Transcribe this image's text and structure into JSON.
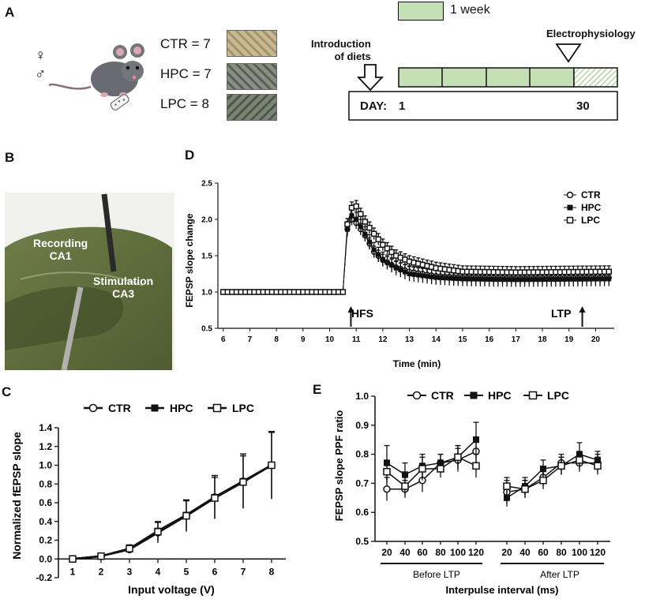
{
  "panels": {
    "a": "A",
    "b": "B",
    "c": "C",
    "d": "D",
    "e": "E"
  },
  "panelA": {
    "sex_female": "♀",
    "sex_male": "♂",
    "groups": [
      {
        "label": "CTR = 7",
        "food_color": "#b9a982"
      },
      {
        "label": "HPC = 7",
        "food_color": "#7c8173"
      },
      {
        "label": "LPC =  8",
        "food_color": "#6f7a6a"
      }
    ],
    "legend_week": "1 week",
    "introduction": "Introduction\nof diets",
    "electrophysiology": "Electrophysiology",
    "day_label": "DAY:",
    "day_start": "1",
    "day_end": "30",
    "week_color": "#c5e0b4"
  },
  "panelB": {
    "recording": "Recording\nCA1",
    "stimulation": "Stimulation\nCA3"
  },
  "colors": {
    "ink": "#111111",
    "slice": "#5e6b3c",
    "bg": "#ffffff"
  },
  "chart_data": [
    {
      "id": "D",
      "type": "scatter",
      "title": "",
      "xlabel": "Time (min)",
      "ylabel": "FEPSP slope change",
      "xlim": [
        5.8,
        20.7
      ],
      "ylim": [
        0.5,
        2.5
      ],
      "xticks": [
        6,
        7,
        8,
        9,
        10,
        11,
        12,
        13,
        14,
        15,
        16,
        17,
        18,
        19,
        20
      ],
      "yticks": [
        0.5,
        1.0,
        1.5,
        2.0,
        2.5
      ],
      "ytick_labels": [
        "0.5",
        "1.0",
        "1.5",
        "2.0",
        "2.5"
      ],
      "annotations": [
        {
          "text": "HFS",
          "x": 10.8
        },
        {
          "text": "LTP",
          "x": 19.5
        }
      ],
      "legend": [
        "CTR",
        "HPC",
        "LPC"
      ],
      "series": [
        {
          "name": "CTR",
          "marker": "circle-open",
          "keys": [
            [
              6,
              1.0
            ],
            [
              10.5,
              1.0
            ],
            [
              10.67,
              1.88
            ],
            [
              10.83,
              2.0
            ],
            [
              11.0,
              1.95
            ],
            [
              11.33,
              1.78
            ],
            [
              11.67,
              1.55
            ],
            [
              12.0,
              1.44
            ],
            [
              12.5,
              1.34
            ],
            [
              13.0,
              1.28
            ],
            [
              14.0,
              1.22
            ],
            [
              15.0,
              1.2
            ],
            [
              17.0,
              1.19
            ],
            [
              20.5,
              1.2
            ]
          ],
          "err": 0.08
        },
        {
          "name": "HPC",
          "marker": "square-filled",
          "keys": [
            [
              6,
              1.0
            ],
            [
              10.5,
              1.0
            ],
            [
              10.67,
              1.88
            ],
            [
              10.83,
              2.05
            ],
            [
              11.0,
              2.0
            ],
            [
              11.33,
              1.8
            ],
            [
              11.67,
              1.58
            ],
            [
              12.0,
              1.45
            ],
            [
              12.5,
              1.33
            ],
            [
              13.0,
              1.25
            ],
            [
              14.0,
              1.2
            ],
            [
              15.0,
              1.18
            ],
            [
              17.0,
              1.17
            ],
            [
              20.5,
              1.18
            ]
          ],
          "err": 0.1
        },
        {
          "name": "LPC",
          "marker": "square-open",
          "keys": [
            [
              6,
              1.0
            ],
            [
              10.5,
              1.0
            ],
            [
              10.67,
              1.95
            ],
            [
              10.83,
              2.16
            ],
            [
              11.0,
              2.18
            ],
            [
              11.33,
              1.97
            ],
            [
              11.67,
              1.8
            ],
            [
              12.0,
              1.65
            ],
            [
              12.5,
              1.5
            ],
            [
              13.0,
              1.42
            ],
            [
              14.0,
              1.33
            ],
            [
              15.0,
              1.28
            ],
            [
              17.0,
              1.27
            ],
            [
              20.5,
              1.28
            ]
          ],
          "err": 0.08
        }
      ]
    },
    {
      "id": "C",
      "type": "line",
      "xlabel": "Input voltage (V)",
      "ylabel": "Normalized fEPSP slope",
      "xlim": [
        0.5,
        8.5
      ],
      "ylim": [
        -0.2,
        1.4
      ],
      "xticks": [
        1,
        2,
        3,
        4,
        5,
        6,
        7,
        8
      ],
      "yticks": [
        -0.2,
        0.0,
        0.2,
        0.4,
        0.6,
        0.8,
        1.0,
        1.2,
        1.4
      ],
      "ytick_labels": [
        "-0.2",
        "0.0",
        "0.2",
        "0.4",
        "0.6",
        "0.8",
        "1.0",
        "1.2",
        "1.4"
      ],
      "legend": [
        "CTR",
        "HPC",
        "LPC"
      ],
      "series": [
        {
          "name": "CTR",
          "marker": "circle-open",
          "values": [
            0.0,
            0.03,
            0.1,
            0.28,
            0.46,
            0.66,
            0.83,
            1.0
          ],
          "err": [
            0.01,
            0.02,
            0.04,
            0.11,
            0.17,
            0.23,
            0.29,
            0.36
          ]
        },
        {
          "name": "HPC",
          "marker": "square-filled",
          "values": [
            0.0,
            0.03,
            0.11,
            0.3,
            0.47,
            0.66,
            0.83,
            1.0
          ],
          "err": [
            0.01,
            0.02,
            0.04,
            0.1,
            0.16,
            0.23,
            0.29,
            0.36
          ]
        },
        {
          "name": "LPC",
          "marker": "square-open",
          "values": [
            0.0,
            0.03,
            0.11,
            0.29,
            0.46,
            0.65,
            0.82,
            1.0
          ],
          "err": [
            0.01,
            0.02,
            0.04,
            0.1,
            0.16,
            0.22,
            0.28,
            0.35
          ]
        }
      ]
    },
    {
      "id": "E",
      "type": "line",
      "xlabel": "Interpulse interval (ms)",
      "ylabel": "FEPSP slope PPF ratio",
      "ylim": [
        0.5,
        1.0
      ],
      "yticks": [
        0.5,
        0.6,
        0.7,
        0.8,
        0.9,
        1.0
      ],
      "ytick_labels": [
        "0.5",
        "0.6",
        "0.7",
        "0.8",
        "0.9",
        "1.0"
      ],
      "categories": [
        "20",
        "40",
        "60",
        "80",
        "100",
        "120",
        "20",
        "40",
        "60",
        "80",
        "100",
        "120"
      ],
      "groups": [
        {
          "label": "Before LTP",
          "from": 0,
          "to": 5
        },
        {
          "label": "After LTP",
          "from": 6,
          "to": 11
        }
      ],
      "legend": [
        "CTR",
        "HPC",
        "LPC"
      ],
      "series": [
        {
          "name": "CTR",
          "marker": "circle-open",
          "values": [
            0.68,
            0.68,
            0.71,
            0.77,
            0.78,
            0.81,
            0.67,
            0.68,
            0.72,
            0.77,
            0.77,
            0.77
          ],
          "err": [
            0.04,
            0.03,
            0.04,
            0.03,
            0.04,
            0.05,
            0.04,
            0.03,
            0.03,
            0.03,
            0.03,
            0.03
          ]
        },
        {
          "name": "HPC",
          "marker": "square-filled",
          "values": [
            0.77,
            0.73,
            0.76,
            0.77,
            0.79,
            0.85,
            0.65,
            0.69,
            0.75,
            0.76,
            0.8,
            0.78
          ],
          "err": [
            0.06,
            0.04,
            0.04,
            0.03,
            0.04,
            0.06,
            0.03,
            0.03,
            0.03,
            0.03,
            0.04,
            0.03
          ]
        },
        {
          "name": "LPC",
          "marker": "square-open",
          "values": [
            0.74,
            0.69,
            0.75,
            0.75,
            0.79,
            0.76,
            0.69,
            0.68,
            0.71,
            0.76,
            0.78,
            0.76
          ],
          "err": [
            0.04,
            0.03,
            0.04,
            0.03,
            0.04,
            0.04,
            0.03,
            0.03,
            0.03,
            0.03,
            0.03,
            0.03
          ]
        }
      ]
    }
  ]
}
